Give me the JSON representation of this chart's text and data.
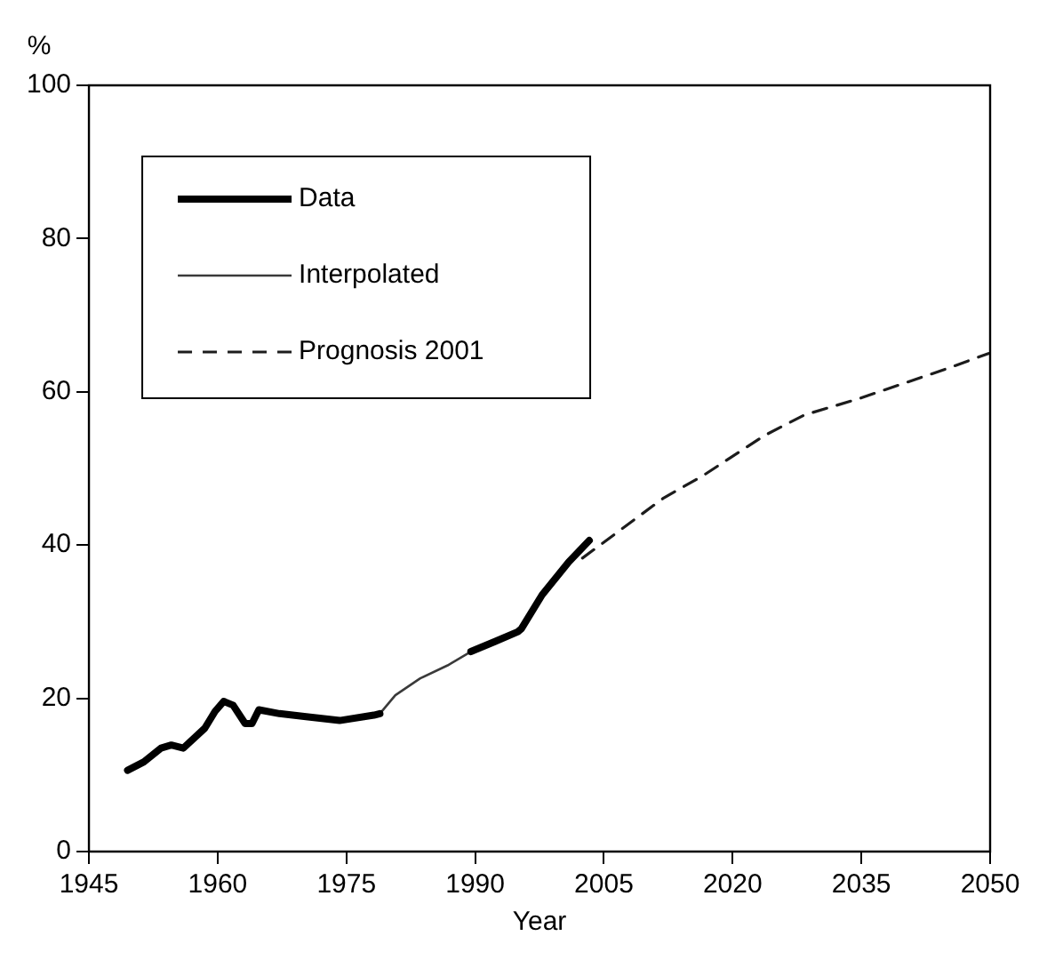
{
  "chart_data": {
    "type": "line",
    "xlabel": "Year",
    "ylabel": "%",
    "xlim": [
      1945,
      2050
    ],
    "xticks": [
      1945,
      1960,
      1975,
      1990,
      2005,
      2020,
      2035,
      2050
    ],
    "ylim": [
      0,
      100
    ],
    "yticks": [
      0,
      20,
      40,
      60,
      80,
      100
    ],
    "grid": false,
    "legend": "top left",
    "series": [
      {
        "name": "Data",
        "color": "#000000",
        "line_style": "solid",
        "x": [
          1949.5,
          1951.4,
          1953.4,
          1954.6,
          1956,
          1958.5,
          1959.7,
          1960.7,
          1961.8,
          1963.2,
          1964,
          1964.8,
          1967.2,
          1970.3,
          1974.2,
          1978.2,
          1978.9,
          null,
          1989.5,
          1992.3,
          1995,
          1995.4,
          1997.8,
          2000.9,
          2003.3
        ],
        "values": [
          10.6,
          11.7,
          13.5,
          13.9,
          13.5,
          16.1,
          18.3,
          19.6,
          19.1,
          16.7,
          16.7,
          18.5,
          18.0,
          17.6,
          17.1,
          17.8,
          18.0,
          null,
          26.1,
          27.4,
          28.7,
          29.1,
          33.5,
          37.8,
          40.6
        ]
      },
      {
        "name": "Interpolated",
        "color": "#3a3a3a",
        "line_style": "solid",
        "x": [
          1978.9,
          1980.7,
          1983.6,
          1986.8,
          1989.5
        ],
        "values": [
          18.0,
          20.4,
          22.6,
          24.3,
          26.1
        ]
      },
      {
        "name": "Prognosis 2001",
        "color": "#1c1c1c",
        "line_style": "dashed",
        "x": [
          2002.5,
          2007.2,
          2011.9,
          2016.6,
          2023.7,
          2028.4,
          2034.7,
          2039.4,
          2044.9,
          2049.8
        ],
        "values": [
          38.3,
          42.2,
          46.1,
          49.1,
          54.3,
          57.0,
          59.1,
          60.9,
          63.0,
          65.0
        ]
      }
    ]
  }
}
